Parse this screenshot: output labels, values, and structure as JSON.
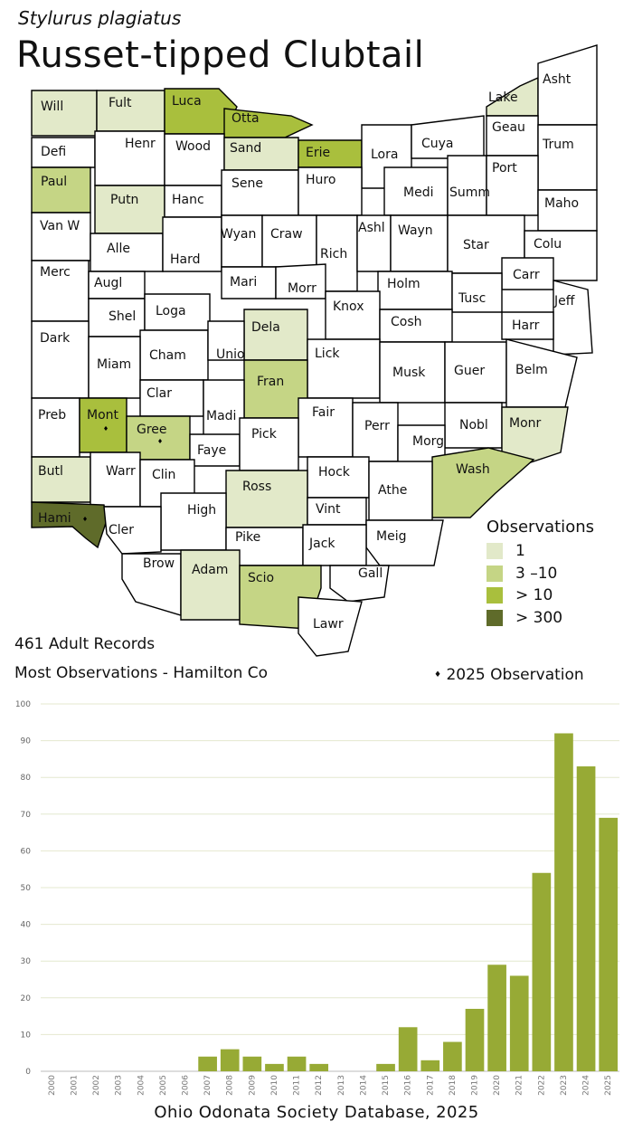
{
  "header": {
    "species": "Stylurus plagiatus",
    "common_name": "Russet-tipped Clubtail"
  },
  "legend": {
    "title": "Observations",
    "items": [
      {
        "label": "1",
        "color": "#e2e9c9"
      },
      {
        "label": "3 –10",
        "color": "#c5d585"
      },
      {
        "label": "> 10",
        "color": "#a9bf3d"
      },
      {
        "label": "> 300",
        "color": "#5f6b2a"
      }
    ]
  },
  "info": {
    "records": "461 Adult Records",
    "most": "Most Observations - Hamilton Co",
    "marker_note": "2025  Observation",
    "marker_symbol": "♦"
  },
  "map": {
    "colors": {
      "none": "#ffffff",
      "one": "#e2e9c9",
      "three_ten": "#c5d585",
      "gt10": "#a9bf3d",
      "gt300": "#5f6b2a"
    },
    "counties": [
      {
        "name": "Will",
        "cls": "one",
        "dot": false
      },
      {
        "name": "Fult",
        "cls": "one",
        "dot": false
      },
      {
        "name": "Luca",
        "cls": "gt10",
        "dot": false
      },
      {
        "name": "Otta",
        "cls": "gt10",
        "dot": false
      },
      {
        "name": "Lake",
        "cls": "one",
        "dot": false
      },
      {
        "name": "Asht",
        "cls": "none",
        "dot": false
      },
      {
        "name": "Defi",
        "cls": "none",
        "dot": false
      },
      {
        "name": "Henr",
        "cls": "none",
        "dot": false
      },
      {
        "name": "Wood",
        "cls": "none",
        "dot": false
      },
      {
        "name": "Sand",
        "cls": "one",
        "dot": false
      },
      {
        "name": "Erie",
        "cls": "gt10",
        "dot": false
      },
      {
        "name": "Lora",
        "cls": "none",
        "dot": false
      },
      {
        "name": "Cuya",
        "cls": "none",
        "dot": false
      },
      {
        "name": "Geau",
        "cls": "none",
        "dot": false
      },
      {
        "name": "Trum",
        "cls": "none",
        "dot": false
      },
      {
        "name": "Paul",
        "cls": "three_ten",
        "dot": false
      },
      {
        "name": "Putn",
        "cls": "one",
        "dot": false
      },
      {
        "name": "Hanc",
        "cls": "none",
        "dot": false
      },
      {
        "name": "Sene",
        "cls": "none",
        "dot": false
      },
      {
        "name": "Huro",
        "cls": "none",
        "dot": false
      },
      {
        "name": "Medi",
        "cls": "none",
        "dot": false
      },
      {
        "name": "Summ",
        "cls": "none",
        "dot": false
      },
      {
        "name": "Port",
        "cls": "none",
        "dot": false
      },
      {
        "name": "Maho",
        "cls": "none",
        "dot": false
      },
      {
        "name": "Van W",
        "cls": "none",
        "dot": false
      },
      {
        "name": "Alle",
        "cls": "none",
        "dot": false
      },
      {
        "name": "Hard",
        "cls": "none",
        "dot": false
      },
      {
        "name": "Wyan",
        "cls": "none",
        "dot": false
      },
      {
        "name": "Craw",
        "cls": "none",
        "dot": false
      },
      {
        "name": "Rich",
        "cls": "none",
        "dot": false
      },
      {
        "name": "Ashl",
        "cls": "none",
        "dot": false
      },
      {
        "name": "Wayn",
        "cls": "none",
        "dot": false
      },
      {
        "name": "Star",
        "cls": "none",
        "dot": false
      },
      {
        "name": "Colu",
        "cls": "none",
        "dot": false
      },
      {
        "name": "Merc",
        "cls": "none",
        "dot": false
      },
      {
        "name": "Augl",
        "cls": "none",
        "dot": false
      },
      {
        "name": "Mari",
        "cls": "none",
        "dot": false
      },
      {
        "name": "Morr",
        "cls": "none",
        "dot": false
      },
      {
        "name": "Holm",
        "cls": "none",
        "dot": false
      },
      {
        "name": "Carr",
        "cls": "none",
        "dot": false
      },
      {
        "name": "Tusc",
        "cls": "none",
        "dot": false
      },
      {
        "name": "Jeff",
        "cls": "none",
        "dot": false
      },
      {
        "name": "Shel",
        "cls": "none",
        "dot": false
      },
      {
        "name": "Loga",
        "cls": "none",
        "dot": false
      },
      {
        "name": "Knox",
        "cls": "none",
        "dot": false
      },
      {
        "name": "Dela",
        "cls": "one",
        "dot": false
      },
      {
        "name": "Cosh",
        "cls": "none",
        "dot": false
      },
      {
        "name": "Harr",
        "cls": "none",
        "dot": false
      },
      {
        "name": "Dark",
        "cls": "none",
        "dot": false
      },
      {
        "name": "Cham",
        "cls": "none",
        "dot": false
      },
      {
        "name": "Unio",
        "cls": "none",
        "dot": false
      },
      {
        "name": "Lick",
        "cls": "none",
        "dot": false
      },
      {
        "name": "Miam",
        "cls": "none",
        "dot": false
      },
      {
        "name": "Musk",
        "cls": "none",
        "dot": false
      },
      {
        "name": "Guer",
        "cls": "none",
        "dot": false
      },
      {
        "name": "Belm",
        "cls": "none",
        "dot": false
      },
      {
        "name": "Clar",
        "cls": "none",
        "dot": false
      },
      {
        "name": "Fran",
        "cls": "three_ten",
        "dot": false
      },
      {
        "name": "Preb",
        "cls": "none",
        "dot": false
      },
      {
        "name": "Mont",
        "cls": "gt10",
        "dot": true
      },
      {
        "name": "Gree",
        "cls": "three_ten",
        "dot": true
      },
      {
        "name": "Madi",
        "cls": "none",
        "dot": false
      },
      {
        "name": "Fair",
        "cls": "none",
        "dot": false
      },
      {
        "name": "Perr",
        "cls": "none",
        "dot": false
      },
      {
        "name": "Nobl",
        "cls": "none",
        "dot": false
      },
      {
        "name": "Monr",
        "cls": "one",
        "dot": false
      },
      {
        "name": "Faye",
        "cls": "none",
        "dot": false
      },
      {
        "name": "Pick",
        "cls": "none",
        "dot": false
      },
      {
        "name": "Morg",
        "cls": "none",
        "dot": false
      },
      {
        "name": "Butl",
        "cls": "one",
        "dot": false
      },
      {
        "name": "Warr",
        "cls": "none",
        "dot": false
      },
      {
        "name": "Clin",
        "cls": "none",
        "dot": false
      },
      {
        "name": "Wash",
        "cls": "three_ten",
        "dot": false
      },
      {
        "name": "Hock",
        "cls": "none",
        "dot": false
      },
      {
        "name": "Ross",
        "cls": "one",
        "dot": false
      },
      {
        "name": "Athe",
        "cls": "none",
        "dot": false
      },
      {
        "name": "Hami",
        "cls": "gt300",
        "dot": true
      },
      {
        "name": "Vint",
        "cls": "none",
        "dot": false
      },
      {
        "name": "High",
        "cls": "none",
        "dot": false
      },
      {
        "name": "Cler",
        "cls": "none",
        "dot": false
      },
      {
        "name": "Meig",
        "cls": "none",
        "dot": false
      },
      {
        "name": "Pike",
        "cls": "none",
        "dot": false
      },
      {
        "name": "Jack",
        "cls": "none",
        "dot": false
      },
      {
        "name": "Brow",
        "cls": "none",
        "dot": false
      },
      {
        "name": "Adam",
        "cls": "one",
        "dot": false
      },
      {
        "name": "Scio",
        "cls": "three_ten",
        "dot": false
      },
      {
        "name": "Gall",
        "cls": "none",
        "dot": false
      },
      {
        "name": "Lawr",
        "cls": "none",
        "dot": false
      }
    ]
  },
  "footer": "Ohio Odonata Society Database, 2025",
  "chart_data": {
    "type": "bar",
    "categories": [
      "2000",
      "2001",
      "2002",
      "2003",
      "2004",
      "2005",
      "2006",
      "2007",
      "2008",
      "2009",
      "2010",
      "2011",
      "2012",
      "2013",
      "2014",
      "2015",
      "2016",
      "2017",
      "2018",
      "2019",
      "2020",
      "2021",
      "2022",
      "2023",
      "2024",
      "2025"
    ],
    "values": [
      0,
      0,
      0,
      0,
      0,
      0,
      0,
      4,
      6,
      4,
      2,
      4,
      2,
      0,
      0,
      2,
      12,
      3,
      8,
      17,
      29,
      26,
      54,
      92,
      83,
      69
    ],
    "ylim": [
      0,
      100
    ],
    "yticks": [
      0,
      10,
      20,
      30,
      40,
      50,
      60,
      70,
      80,
      90,
      100
    ],
    "bar_color": "#97aa35",
    "grid": true,
    "title": "",
    "xlabel": "",
    "ylabel": ""
  }
}
